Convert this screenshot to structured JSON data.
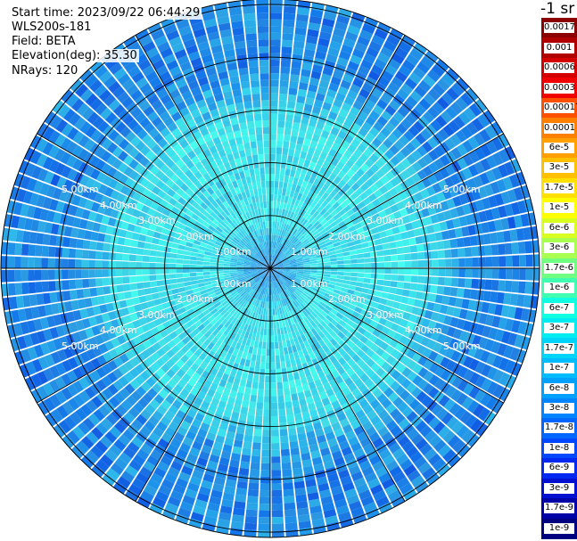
{
  "info": {
    "start_time": "Start time: 2023/09/22 06:44:29",
    "instrument": "WLS200s-181",
    "field": "Field: BETA",
    "elevation": "Elevation(deg): 35.30",
    "nrays": "NRays: 120"
  },
  "colorbar": {
    "unit": "-1 sr",
    "levels": [
      {
        "label": "0.0017",
        "color": "#8b0000"
      },
      {
        "label": "0.001",
        "color": "#b00000"
      },
      {
        "label": "0.0006",
        "color": "#d40000"
      },
      {
        "label": "0.0003",
        "color": "#f00000"
      },
      {
        "label": "0.00017",
        "color": "#ff5000"
      },
      {
        "label": "0.0001",
        "color": "#ff8000"
      },
      {
        "label": "6e-5",
        "color": "#ffa000"
      },
      {
        "label": "3e-5",
        "color": "#ffc000"
      },
      {
        "label": "1.7e-5",
        "color": "#ffe000"
      },
      {
        "label": "1e-5",
        "color": "#ffff00"
      },
      {
        "label": "6e-6",
        "color": "#d8ff20"
      },
      {
        "label": "3e-6",
        "color": "#a8ff50"
      },
      {
        "label": "1.7e-6",
        "color": "#70ff80"
      },
      {
        "label": "1e-6",
        "color": "#40ffb0"
      },
      {
        "label": "6e-7",
        "color": "#10ffe0"
      },
      {
        "label": "3e-7",
        "color": "#00ecf0"
      },
      {
        "label": "1.7e-7",
        "color": "#00d4f8"
      },
      {
        "label": "1e-7",
        "color": "#00bcff"
      },
      {
        "label": "6e-8",
        "color": "#00a0ff"
      },
      {
        "label": "3e-8",
        "color": "#0084ff"
      },
      {
        "label": "1.7e-8",
        "color": "#0066ff"
      },
      {
        "label": "1e-8",
        "color": "#0048ff"
      },
      {
        "label": "6e-9",
        "color": "#0028f0"
      },
      {
        "label": "3e-9",
        "color": "#0010d0"
      },
      {
        "label": "1.7e-9",
        "color": "#0000a8"
      },
      {
        "label": "1e-9",
        "color": "#000080"
      }
    ]
  },
  "range_rings": [
    {
      "label": "1.00km",
      "km": 1
    },
    {
      "label": "2.00km",
      "km": 2
    },
    {
      "label": "3.00km",
      "km": 3
    },
    {
      "label": "4.00km",
      "km": 4
    },
    {
      "label": "5.00km",
      "km": 5
    }
  ],
  "plot": {
    "max_range_km": 5.1,
    "n_rays": 120,
    "colors": {
      "near": "#1e8ae8",
      "mid": "#3de0ea",
      "far": "#1f88e6",
      "grid": "#000000",
      "background": "#ffffff"
    }
  }
}
